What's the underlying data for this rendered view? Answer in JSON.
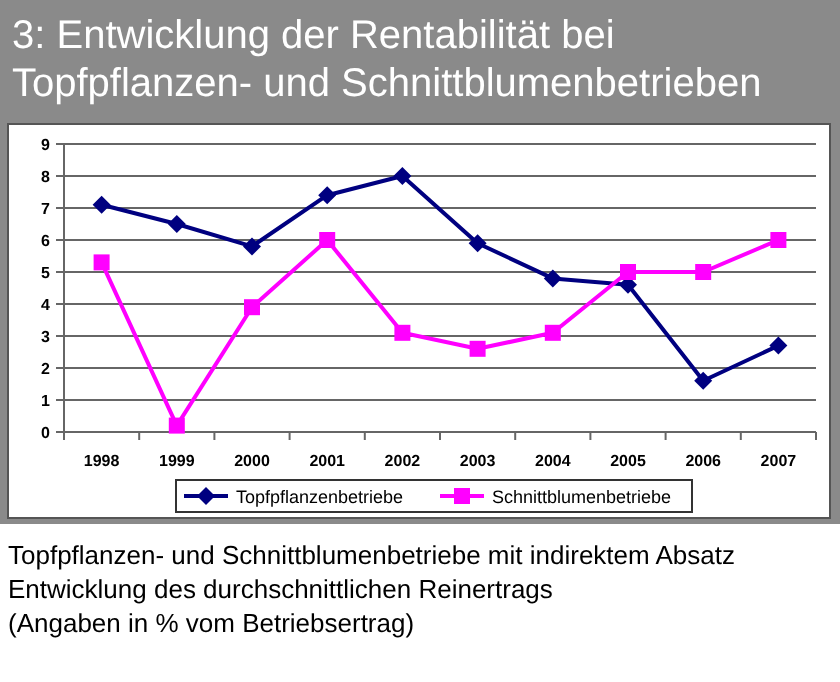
{
  "chart_data": {
    "type": "line",
    "title": "3: Entwicklung der Rentabilität bei Topfpflanzen- und Schnittblumenbetrieben",
    "categories": [
      "1998",
      "1999",
      "2000",
      "2001",
      "2002",
      "2003",
      "2004",
      "2005",
      "2006",
      "2007"
    ],
    "series": [
      {
        "name": "Topfpflanzenbetriebe",
        "color": "#000080",
        "marker": "diamond",
        "values": [
          7.1,
          6.5,
          5.8,
          7.4,
          8.0,
          5.9,
          4.8,
          4.6,
          1.6,
          2.7
        ]
      },
      {
        "name": "Schnittblumenbetriebe",
        "color": "#ff00ff",
        "marker": "square",
        "values": [
          5.3,
          0.2,
          3.9,
          6.0,
          3.1,
          2.6,
          3.1,
          5.0,
          5.0,
          6.0
        ]
      }
    ],
    "ylim": [
      0,
      9
    ],
    "yticks": [
      0,
      1,
      2,
      3,
      4,
      5,
      6,
      7,
      8,
      9
    ],
    "grid": "y",
    "legend": "bottom",
    "annotations": [
      "Topfpflanzen- und Schnittblumenbetriebe mit indirektem Absatz",
      "Entwicklung des durchschnittlichen Reinertrags",
      "(Angaben in % vom Betriebsertrag)"
    ]
  }
}
